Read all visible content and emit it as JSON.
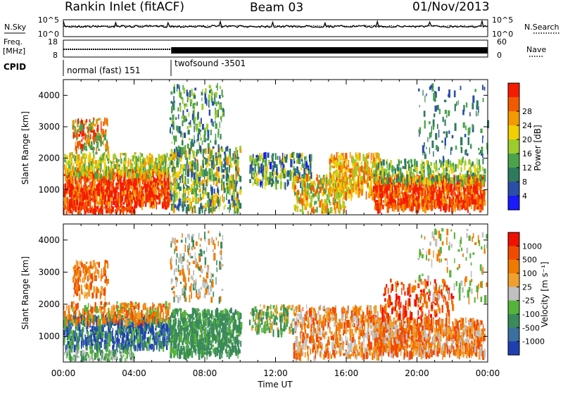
{
  "header": {
    "station": "Rankin Inlet (fitACF)",
    "beam": "Beam 03",
    "date": "01/Nov/2013"
  },
  "noise_panel": {
    "left_label": "N.Sky",
    "right_label": "N.Search",
    "tick_top": "10^5",
    "tick_bottom": "10^0",
    "right_tick_top": "10^5",
    "right_tick_bottom": "10^0"
  },
  "freq_panel": {
    "left_label_line1": "Freq.",
    "left_label_line2": "[MHz]",
    "tick_top": "18",
    "tick_bottom": "8",
    "right_label": "Nave",
    "right_tick_top": "60",
    "right_tick_bottom": "0"
  },
  "cpid": {
    "label": "CPID",
    "segments": [
      {
        "name": "normal (fast) 151",
        "start_hour": 0.0,
        "end_hour": 6.1
      },
      {
        "name": "twofsound -3501",
        "start_hour": 6.1,
        "end_hour": 24.0
      }
    ]
  },
  "chart_data": [
    {
      "type": "heatmap",
      "name": "power",
      "ylabel": "Slant Range [km]",
      "xlabel": "Time UT",
      "x_ticks": [
        "00:00",
        "04:00",
        "08:00",
        "12:00",
        "16:00",
        "20:00",
        "00:00"
      ],
      "y_ticks": [
        1000,
        2000,
        3000,
        4000
      ],
      "xlim_hours": [
        0,
        24
      ],
      "ylim_km": [
        200,
        4500
      ],
      "colorbar": {
        "label": "Power [dB]",
        "ticks": [
          4,
          8,
          12,
          16,
          20,
          24,
          28
        ],
        "colors": [
          "#1a1aff",
          "#2b4fa8",
          "#2e7a5e",
          "#4aa34a",
          "#9ccc2e",
          "#f0d000",
          "#f39a00",
          "#f05a00",
          "#f41c00"
        ]
      }
    },
    {
      "type": "heatmap",
      "name": "velocity",
      "ylabel": "Slant Range [km]",
      "xlabel": "Time UT",
      "x_ticks": [
        "00:00",
        "04:00",
        "08:00",
        "12:00",
        "16:00",
        "20:00",
        "00:00"
      ],
      "y_ticks": [
        1000,
        2000,
        3000,
        4000
      ],
      "xlim_hours": [
        0,
        24
      ],
      "ylim_km": [
        200,
        4500
      ],
      "colorbar": {
        "label": "Velocity [m s⁻¹]",
        "ticks": [
          "1000",
          "500",
          "100",
          "25",
          "-25",
          "-100",
          "-500",
          "-1000"
        ],
        "colors": [
          "#1f3fb0",
          "#3b6fa0",
          "#3a8a5a",
          "#55b33a",
          "#c0c0c0",
          "#f0a030",
          "#f07a00",
          "#f04a00",
          "#f01000"
        ]
      }
    }
  ],
  "time_axis_label": "Time UT"
}
